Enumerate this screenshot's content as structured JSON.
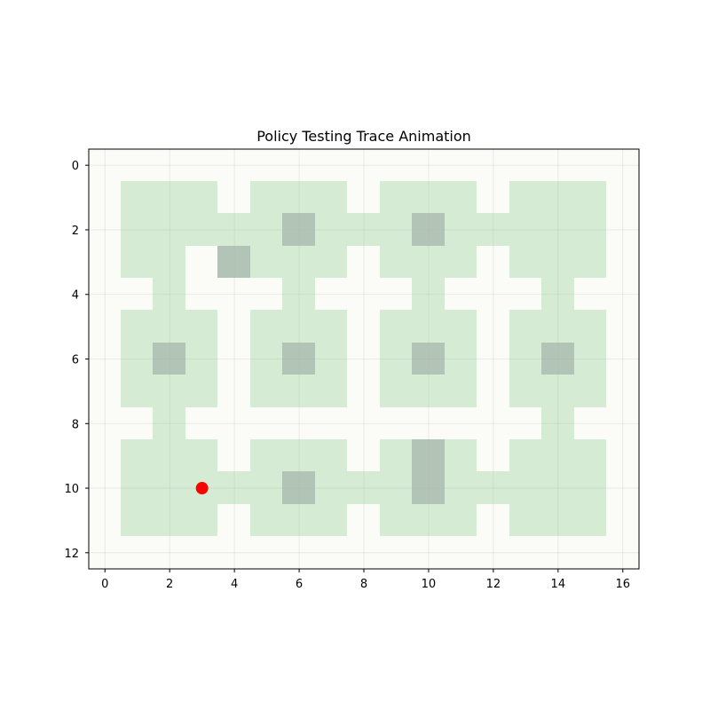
{
  "chart_data": {
    "type": "heatmap",
    "title": "Policy Testing Trace Animation",
    "xlabel": "",
    "ylabel": "",
    "xlim": [
      -0.5,
      16.5
    ],
    "ylim": [
      12.5,
      -0.5
    ],
    "y_inverted": true,
    "grid": true,
    "x_ticks": [
      0,
      2,
      4,
      6,
      8,
      10,
      12,
      14,
      16
    ],
    "y_ticks": [
      0,
      2,
      4,
      6,
      8,
      10,
      12
    ],
    "x_tick_labels": [
      "0",
      "2",
      "4",
      "6",
      "8",
      "10",
      "12",
      "14",
      "16"
    ],
    "y_tick_labels": [
      "0",
      "2",
      "4",
      "6",
      "8",
      "10",
      "12"
    ],
    "colors": {
      "empty": "#fbfcf8",
      "room": "#d6ebd3",
      "marked": "#b2c4b5",
      "agent": "#ff0000",
      "grid": "#b0b0b0"
    },
    "grid_values": [
      "00000000000000000",
      "01110111011101110",
      "01111121112111110",
      "01102111011101110",
      "00100010001000100",
      "01110111011101110",
      "01210121012101210",
      "01110111011101110",
      "00100000000000100",
      "01110111012101110",
      "01111121112111110",
      "01110111011101110",
      "00000000000000000"
    ],
    "agent": {
      "x": 3,
      "y": 10
    }
  }
}
